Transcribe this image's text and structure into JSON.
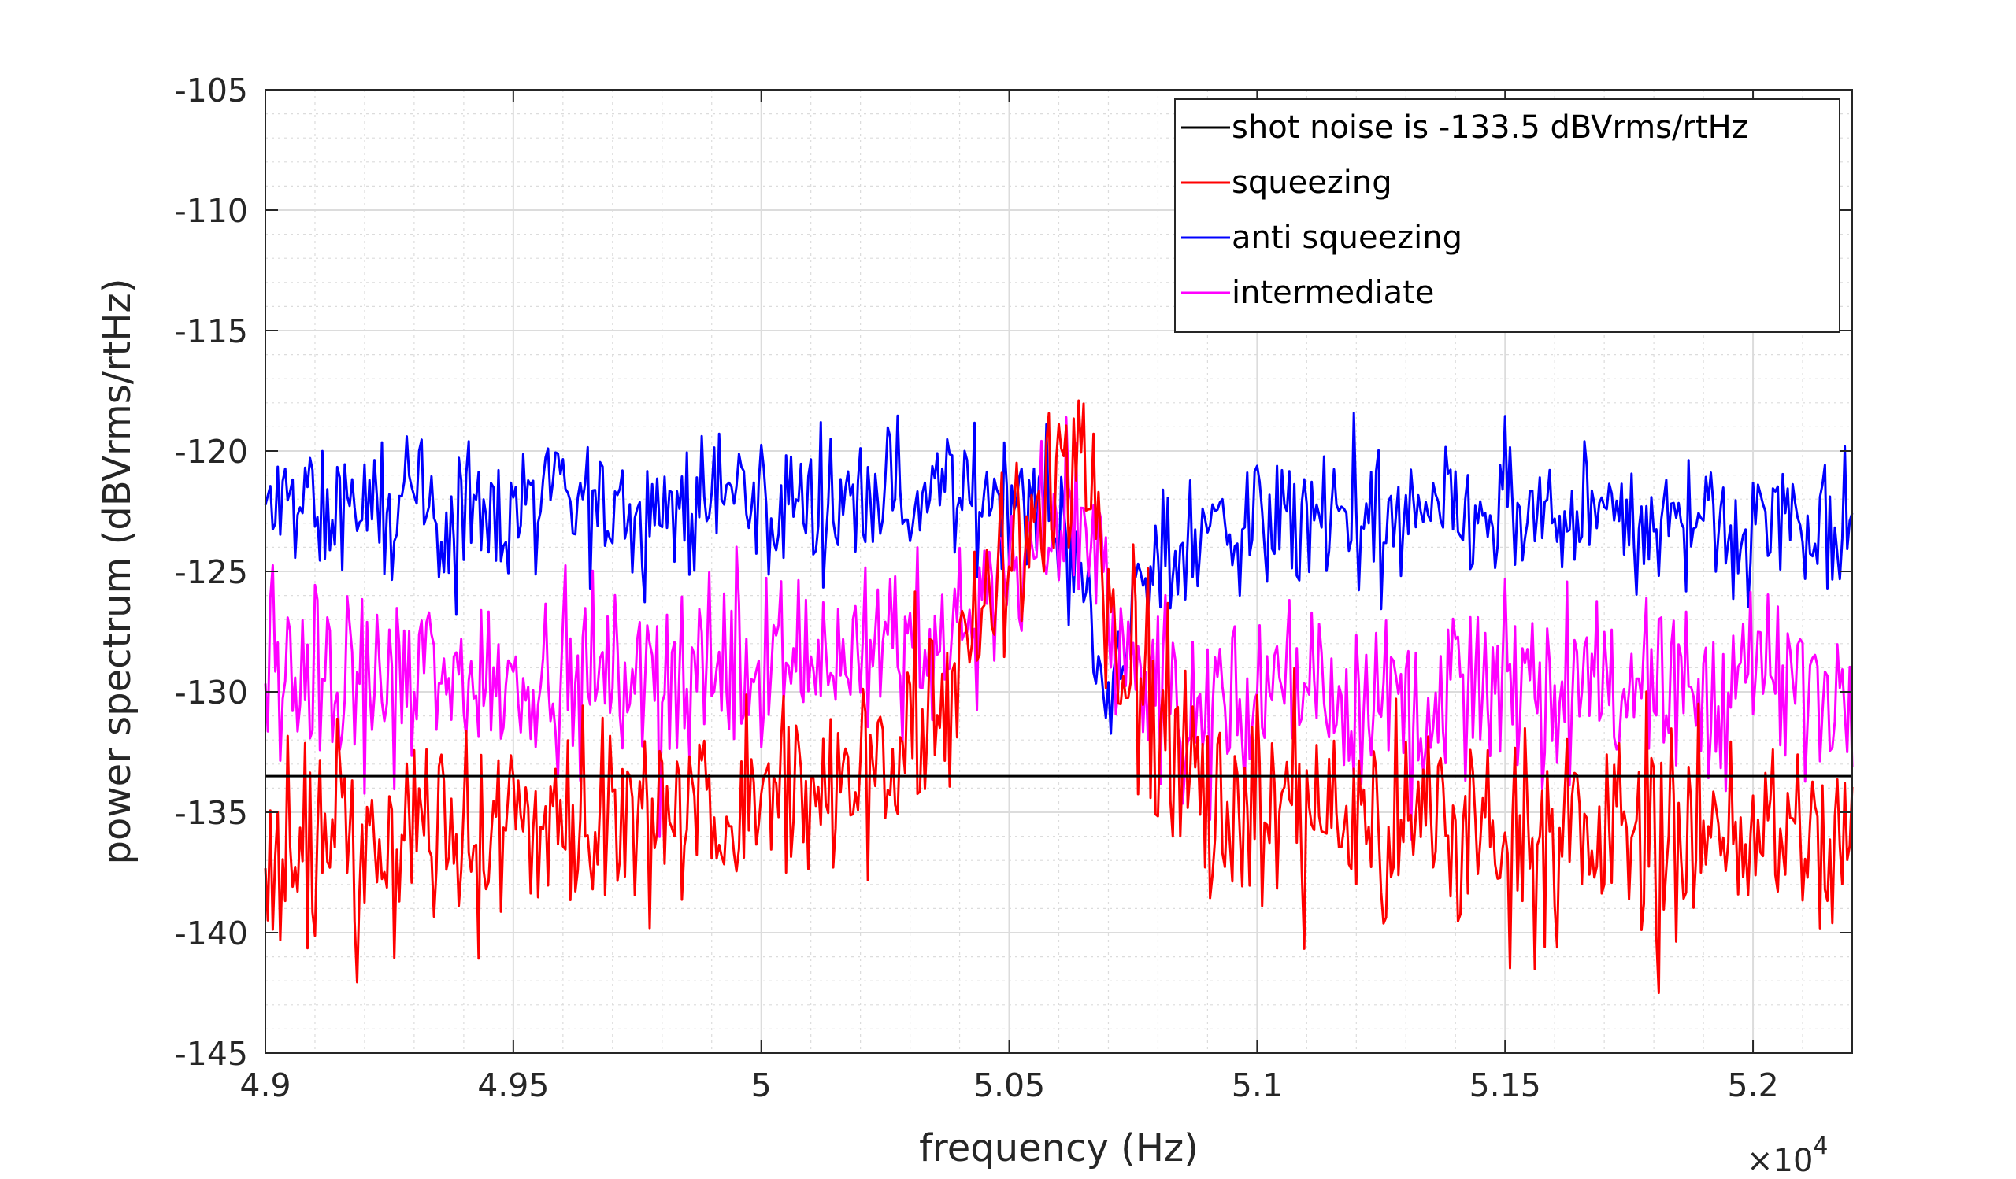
{
  "chart_data": {
    "type": "line",
    "xlabel": "frequency (Hz)",
    "ylabel": "power spectrum (dBVrms/rtHz)",
    "x_multiplier_label": "×10",
    "x_multiplier_exponent": "4",
    "xlim": [
      4.9,
      5.22
    ],
    "ylim": [
      -145,
      -105
    ],
    "xticks": [
      4.9,
      4.95,
      5.0,
      5.05,
      5.1,
      5.15,
      5.2
    ],
    "xtick_labels": [
      "4.9",
      "4.95",
      "5",
      "5.05",
      "5.1",
      "5.15",
      "5.2"
    ],
    "yticks": [
      -145,
      -140,
      -135,
      -130,
      -125,
      -120,
      -115,
      -110,
      -105
    ],
    "ytick_labels": [
      "-145",
      "-140",
      "-135",
      "-130",
      "-125",
      "-120",
      "-115",
      "-110",
      "-105"
    ],
    "grid": true,
    "legend_position": "top-right",
    "colors": {
      "shot_noise": "#000000",
      "squeezing": "#ff0000",
      "anti_squeezing": "#0000ff",
      "intermediate": "#ff00ff",
      "grid": "#dcdcdc",
      "axes": "#262626"
    },
    "series": [
      {
        "name": "shot noise is -133.5 dBVrms/rtHz",
        "color": "#000000",
        "kind": "constant",
        "y": -133.5
      },
      {
        "name": "squeezing",
        "color": "#ff0000",
        "kind": "noisy",
        "points": [
          [
            4.9,
            -136.0
          ],
          [
            4.92,
            -135.8
          ],
          [
            4.94,
            -135.7
          ],
          [
            4.96,
            -135.5
          ],
          [
            4.98,
            -135.2
          ],
          [
            5.0,
            -134.8
          ],
          [
            5.015,
            -134.0
          ],
          [
            5.025,
            -132.5
          ],
          [
            5.035,
            -130.5
          ],
          [
            5.045,
            -127.5
          ],
          [
            5.052,
            -124.5
          ],
          [
            5.057,
            -122.0
          ],
          [
            5.061,
            -120.5
          ],
          [
            5.065,
            -121.5
          ],
          [
            5.068,
            -124.5
          ],
          [
            5.072,
            -127.5
          ],
          [
            5.077,
            -130.0
          ],
          [
            5.082,
            -131.5
          ],
          [
            5.09,
            -133.5
          ],
          [
            5.1,
            -134.8
          ],
          [
            5.12,
            -135.5
          ],
          [
            5.15,
            -135.8
          ],
          [
            5.18,
            -135.9
          ],
          [
            5.22,
            -136.0
          ]
        ],
        "noise_amplitude": 2.2
      },
      {
        "name": "anti squeezing",
        "color": "#0000ff",
        "kind": "noisy",
        "points": [
          [
            4.9,
            -122.5
          ],
          [
            4.95,
            -122.4
          ],
          [
            5.0,
            -122.2
          ],
          [
            5.03,
            -121.8
          ],
          [
            5.05,
            -121.5
          ],
          [
            5.057,
            -122.0
          ],
          [
            5.062,
            -123.5
          ],
          [
            5.066,
            -126.5
          ],
          [
            5.069,
            -129.0
          ],
          [
            5.072,
            -128.5
          ],
          [
            5.076,
            -126.0
          ],
          [
            5.082,
            -124.0
          ],
          [
            5.09,
            -123.2
          ],
          [
            5.12,
            -122.9
          ],
          [
            5.17,
            -122.8
          ],
          [
            5.22,
            -122.8
          ]
        ],
        "noise_amplitude": 1.4
      },
      {
        "name": "intermediate",
        "color": "#ff00ff",
        "kind": "noisy",
        "points": [
          [
            4.9,
            -129.5
          ],
          [
            4.95,
            -129.2
          ],
          [
            5.0,
            -128.8
          ],
          [
            5.03,
            -128.0
          ],
          [
            5.045,
            -126.5
          ],
          [
            5.055,
            -124.0
          ],
          [
            5.062,
            -122.0
          ],
          [
            5.066,
            -123.5
          ],
          [
            5.07,
            -126.0
          ],
          [
            5.075,
            -128.5
          ],
          [
            5.082,
            -130.5
          ],
          [
            5.09,
            -131.0
          ],
          [
            5.11,
            -130.0
          ],
          [
            5.15,
            -129.7
          ],
          [
            5.22,
            -129.7
          ]
        ],
        "noise_amplitude": 1.8
      }
    ]
  }
}
